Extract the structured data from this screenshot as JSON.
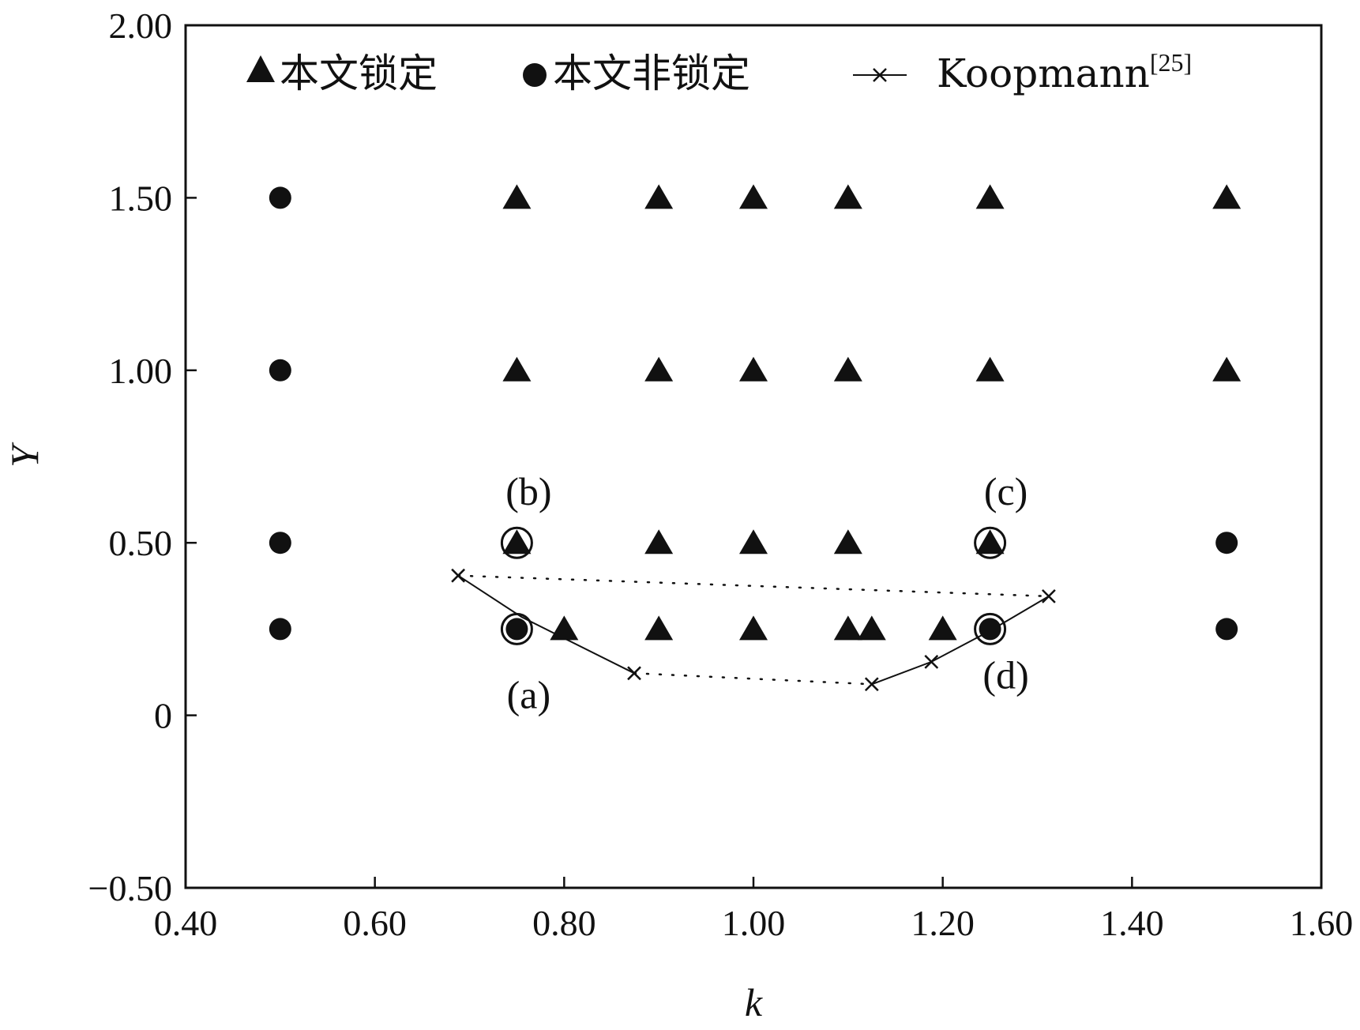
{
  "chart_data": {
    "type": "scatter",
    "title": "",
    "xlabel": "k",
    "ylabel": "Y",
    "xlim": [
      0.4,
      1.6
    ],
    "ylim": [
      -0.5,
      2.0
    ],
    "x_ticks": [
      0.4,
      0.6,
      0.8,
      1.0,
      1.2,
      1.4,
      1.6
    ],
    "x_tick_labels": [
      "0.40",
      "0.60",
      "0.80",
      "1.00",
      "1.20",
      "1.40",
      "1.60"
    ],
    "y_ticks": [
      -0.5,
      0,
      0.5,
      1.0,
      1.5,
      2.0
    ],
    "y_tick_labels": [
      "−0.50",
      "0",
      "0.50",
      "1.00",
      "1.50",
      "2.00"
    ],
    "grid": false,
    "legend_placement": "top",
    "series": [
      {
        "name": "本文锁定",
        "marker": "triangle",
        "color": "#111111",
        "points": [
          [
            0.75,
            1.5
          ],
          [
            0.9,
            1.5
          ],
          [
            1.0,
            1.5
          ],
          [
            1.1,
            1.5
          ],
          [
            1.25,
            1.5
          ],
          [
            1.5,
            1.5
          ],
          [
            0.75,
            1.0
          ],
          [
            0.9,
            1.0
          ],
          [
            1.0,
            1.0
          ],
          [
            1.1,
            1.0
          ],
          [
            1.25,
            1.0
          ],
          [
            1.5,
            1.0
          ],
          [
            0.75,
            0.5
          ],
          [
            0.9,
            0.5
          ],
          [
            1.0,
            0.5
          ],
          [
            1.1,
            0.5
          ],
          [
            1.25,
            0.5
          ],
          [
            0.8,
            0.25
          ],
          [
            0.9,
            0.25
          ],
          [
            1.0,
            0.25
          ],
          [
            1.1,
            0.25
          ],
          [
            1.125,
            0.25
          ],
          [
            1.2,
            0.25
          ]
        ]
      },
      {
        "name": "本文非锁定",
        "marker": "circle",
        "color": "#111111",
        "points": [
          [
            0.5,
            1.5
          ],
          [
            0.5,
            1.0
          ],
          [
            0.5,
            0.5
          ],
          [
            0.5,
            0.25
          ],
          [
            0.75,
            0.25
          ],
          [
            1.25,
            0.25
          ],
          [
            1.5,
            0.5
          ],
          [
            1.5,
            0.25
          ]
        ]
      },
      {
        "name": "Koopmann",
        "name_superscript": "[25]",
        "marker": "x",
        "color": "#111111",
        "solid_segments": [
          [
            [
              0.688,
              0.405
            ],
            [
              0.755,
              0.285
            ],
            [
              0.874,
              0.122
            ]
          ],
          [
            [
              1.125,
              0.09
            ],
            [
              1.188,
              0.155
            ],
            [
              1.25,
              0.245
            ],
            [
              1.312,
              0.345
            ]
          ]
        ],
        "dotted_segments": [
          [
            [
              0.688,
              0.405
            ],
            [
              1.312,
              0.345
            ]
          ],
          [
            [
              0.874,
              0.122
            ],
            [
              1.125,
              0.09
            ]
          ]
        ],
        "x_markers": [
          [
            0.688,
            0.405
          ],
          [
            0.874,
            0.122
          ],
          [
            1.125,
            0.09
          ],
          [
            1.188,
            0.155
          ],
          [
            1.312,
            0.345
          ]
        ]
      }
    ],
    "highlighted_points": [
      {
        "x": 0.75,
        "y": 0.25,
        "label": "(a)",
        "label_pos": "below"
      },
      {
        "x": 0.75,
        "y": 0.5,
        "label": "(b)",
        "label_pos": "above"
      },
      {
        "x": 1.25,
        "y": 0.5,
        "label": "(c)",
        "label_pos": "above"
      },
      {
        "x": 1.25,
        "y": 0.25,
        "label": "(d)",
        "label_pos": "below"
      }
    ]
  }
}
